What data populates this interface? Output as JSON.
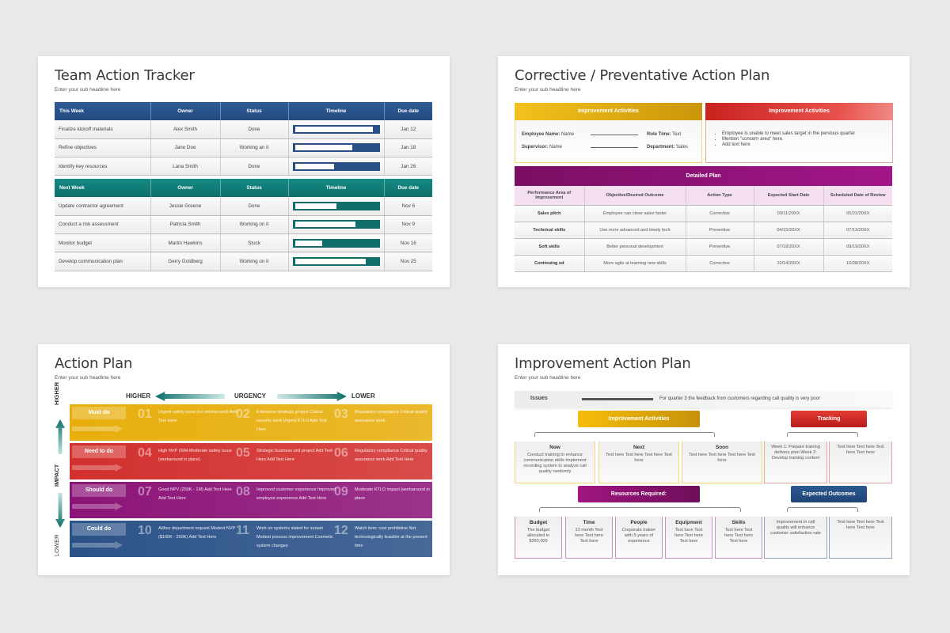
{
  "slide1": {
    "title": "Team Action Tracker",
    "subtitle": "Enter your sub headline here",
    "this_week": {
      "headers": [
        "This Week",
        "Owner",
        "Status",
        "Timeline",
        "Due date"
      ],
      "rows": [
        {
          "task": "Finalize kickoff materials",
          "owner": "Alex Smith",
          "status": "Done",
          "progress": 95,
          "due": "Jan 12"
        },
        {
          "task": "Refine objectives",
          "owner": "Jane Doe",
          "status": "Working an it",
          "progress": 70,
          "due": "Jan 18"
        },
        {
          "task": "Identify key resources",
          "owner": "Lana Smith",
          "status": "Done",
          "progress": 48,
          "due": "Jan 26"
        }
      ]
    },
    "next_week": {
      "headers": [
        "Next Week",
        "Owner",
        "Status",
        "Timeline",
        "Due date"
      ],
      "rows": [
        {
          "task": "Update contractor agreement",
          "owner": "Jessie Greene",
          "status": "Done",
          "progress": 50,
          "due": "Nov 6"
        },
        {
          "task": "Conduct a risk assessment",
          "owner": "Patricia Smith",
          "status": "Working on it",
          "progress": 74,
          "due": "Nov 9"
        },
        {
          "task": "Monitor budget",
          "owner": "Martin Hawkins",
          "status": "Stuck",
          "progress": 33,
          "due": "Nov 16"
        },
        {
          "task": "Develop communication plan",
          "owner": "Gerry Goldberg",
          "status": "Working on it",
          "progress": 86,
          "due": "Nov 25"
        }
      ]
    },
    "colors": {
      "blue": "#2a4f86",
      "teal": "#0f6e69"
    }
  },
  "slide2": {
    "title": "Corrective / Preventative Action Plan",
    "subtitle": "Enter your sub headline here",
    "left_header": "Improvement Activities",
    "right_header": "Improvement Activities",
    "fields": {
      "employee_label": "Employee Name:",
      "employee": "Name",
      "role_label": "Role Time:",
      "role": "Text",
      "supervisor_label": "Supervisor:",
      "supervisor": "Name",
      "dept_label": "Department:",
      "dept": "Sales"
    },
    "bullets": [
      "Employee is unable to meet sales target in the pervious quarter",
      "Mention \"concern area\" here.",
      "Add text here"
    ],
    "plan_title": "Detailed Plan",
    "plan_headers": [
      "Performance Area of Improvement",
      "Objective/Desired Outcome",
      "Action Type",
      "Expected Start Date",
      "Scheduled Date of Review"
    ],
    "plan_rows": [
      [
        "Sales pitch",
        "Employee can close sales faster",
        "Corrective",
        "03/11/20XX",
        "05/22/20XX"
      ],
      [
        "Technical skills",
        "Use more advanced and timely tech",
        "Preventive",
        "04/15/20XX",
        "07/13/20XX"
      ],
      [
        "Soft skills",
        "Better personal development",
        "Preventive",
        "07/18/20XX",
        "09/19/20XX"
      ],
      [
        "Continuing ed",
        "More agile at learning new skills",
        "Corrective",
        "10/14/20XX",
        "10/28/20XX"
      ]
    ],
    "colors": {
      "gold": "#e2ad0a",
      "red": "#d93a35",
      "purple": "#8e1274"
    }
  },
  "slide3": {
    "title": "Action Plan",
    "subtitle": "Enter your sub headline here",
    "urgency": {
      "higher": "HIGHER",
      "label": "URGENCY",
      "lower": "LOWER"
    },
    "impact": {
      "higher": "HIGHER",
      "label": "IMPACT",
      "lower": "LOWER"
    },
    "rows": [
      {
        "label": "Must do",
        "color": "#e7ae0c",
        "cells": [
          {
            "n": "01",
            "t": "Urgent safety issue (no workaround) Add Text Here"
          },
          {
            "n": "02",
            "t": "Enterprise strategic project Critical security work Urgent KTLO Add Text Here"
          },
          {
            "n": "03",
            "t": "Regulatory compliance Critical quality assurance work"
          }
        ]
      },
      {
        "label": "Need to do",
        "color": "#d2302e",
        "cells": [
          {
            "n": "04",
            "t": "High NVP (SIM-Moderate safety issue (workaround in place)"
          },
          {
            "n": "05",
            "t": "Strategic business unit project Add Text Here Add Text Here"
          },
          {
            "n": "06",
            "t": "Regulatory compliance Critical quality assurance work Add Text Here"
          }
        ]
      },
      {
        "label": "Should do",
        "color": "#8c1478",
        "cells": [
          {
            "n": "07",
            "t": "Good NPV (250K - 1M) Add Text Here Add Text Here"
          },
          {
            "n": "08",
            "t": "Improved customer experience Improved employee experience Add Text Here"
          },
          {
            "n": "09",
            "t": "Moderate KTLO impact (workaround in place"
          }
        ]
      },
      {
        "label": "Could do",
        "color": "#2b5288",
        "cells": [
          {
            "n": "10",
            "t": "Adhoc department request Modest NVP ($100K - 250K) Add Text Here"
          },
          {
            "n": "11",
            "t": "Work on systems slated for sunset Modest process improvement Cosmetic system changes"
          },
          {
            "n": "12",
            "t": "Watch item: cost prohibitive Not technologically feasible at the present time"
          }
        ]
      }
    ]
  },
  "slide4": {
    "title": "Improvement Action Plan",
    "subtitle": "Enter your sub headline here",
    "issues_label": "Issues",
    "issues_text": "For quarter 3 the feedback from customers regarding call quality is very poor",
    "activities": "Improvement Activities",
    "tracking": "Tracking",
    "resources": "Resources Required:",
    "outcomes": "Expected Outcomes",
    "activity_cards": [
      {
        "h": "Now",
        "t": "Conduct training to enhance communication skills Implement recording system to analyze call quality randomly"
      },
      {
        "h": "Next",
        "t": "Text here Text here Text here Text here"
      },
      {
        "h": "Soon",
        "t": "Text here Text here Text here Text here"
      }
    ],
    "tracking_cards": [
      {
        "t": "Week 1: Prepare training delivery plan Week 2: Develop training content"
      },
      {
        "t": "Text here Text here Text here Text here"
      }
    ],
    "resource_cards": [
      {
        "h": "Budget",
        "t": "The budget allocated in $260,000"
      },
      {
        "h": "Time",
        "t": "13 month Text here Text here Text here"
      },
      {
        "h": "People",
        "t": "Corporate trainer with 5 years of experience"
      },
      {
        "h": "Equipment",
        "t": "Text here Text here Text here Text here"
      },
      {
        "h": "Skills",
        "t": "Text here Text here Text here Text here"
      }
    ],
    "outcome_cards": [
      {
        "t": "Improvement in call quality will enhance customer satisfaction rate"
      },
      {
        "t": "Text here Text here Text here Text here"
      }
    ]
  }
}
